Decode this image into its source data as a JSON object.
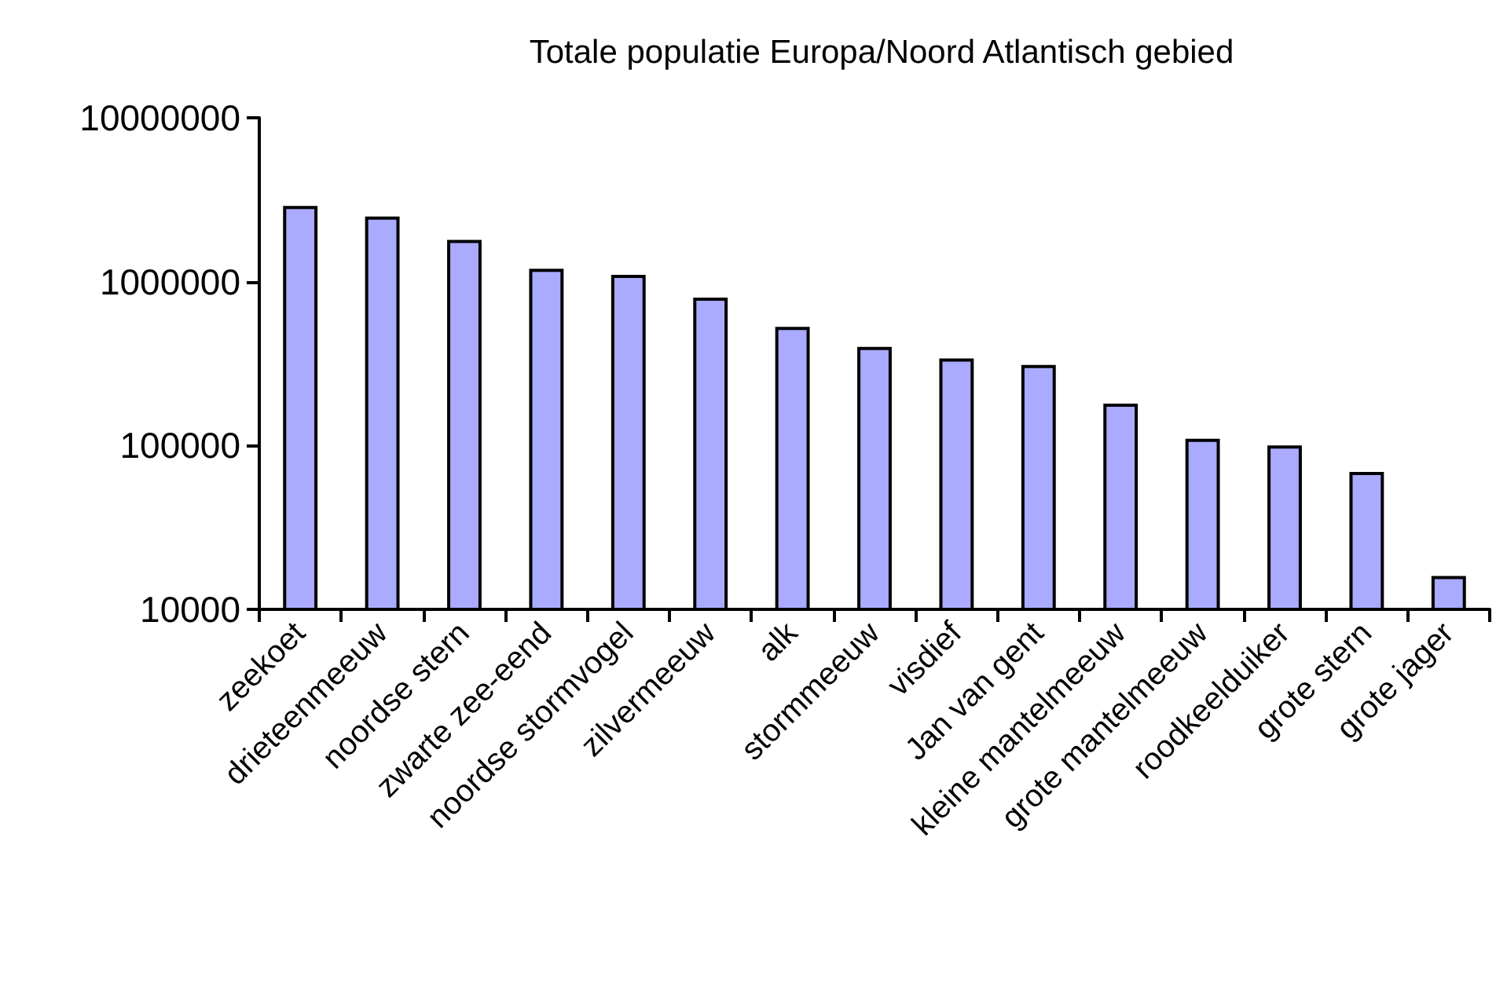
{
  "chart_data": {
    "type": "bar",
    "title": "Totale populatie Europa/Noord Atlantisch gebied",
    "categories": [
      "zeekoet",
      "drieteenmeeuw",
      "noordse stern",
      "zwarte zee-eend",
      "noordse stormvogel",
      "zilvermeeuw",
      "alk",
      "stormmeeuw",
      "visdief",
      "Jan van gent",
      "kleine mantelmeeuw",
      "grote mantelmeeuw",
      "roodkeelduiker",
      "grote stern",
      "grote jager"
    ],
    "values": [
      2900000,
      2500000,
      1800000,
      1200000,
      1100000,
      800000,
      530000,
      400000,
      340000,
      310000,
      180000,
      110000,
      100000,
      69000,
      16000
    ],
    "color": "#aaaaff",
    "log": "y",
    "ylim": [
      10000,
      10000000
    ],
    "yticks": [
      10000,
      100000,
      1000000,
      10000000
    ],
    "grid": false
  }
}
